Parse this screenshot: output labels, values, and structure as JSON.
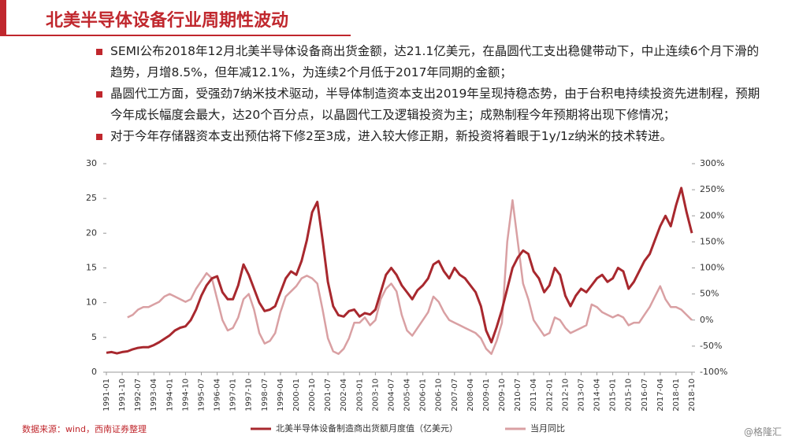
{
  "header": {
    "title": "北美半导体设备行业周期性波动"
  },
  "bullets": [
    "SEMI公布2018年12月北美半导体设备商出货金额，达21.1亿美元，在晶圆代工支出稳健带动下，中止连续6个月下滑的趋势，月增8.5%，但年减12.1%，为连续2个月低于2017年同期的金额；",
    "晶圆代工方面，受强劲7纳米技术驱动，半导体制造资本支出2019年呈现持稳态势，由于台积电持续投资先进制程，预期今年成长幅度会最大，达20个百分点，以晶圆代工及逻辑投资为主；成熟制程今年预期将出现下修情况；",
    "对于今年存储器资本支出预估将下修2至3成，进入较大修正期，新投资将着眼于1y/1z纳米的技术转进。"
  ],
  "source": "数据来源：wind，西南证券整理",
  "watermark": "@格隆汇",
  "chart_data": {
    "type": "line",
    "categories": [
      "1991-01",
      null,
      null,
      "1991-10",
      null,
      null,
      "1992-07",
      null,
      null,
      "1993-04",
      null,
      null,
      "1994-01",
      null,
      null,
      "1994-10",
      null,
      null,
      "1995-07",
      null,
      null,
      "1996-04",
      null,
      null,
      "1997-01",
      null,
      null,
      "1997-10",
      null,
      null,
      "1998-07",
      null,
      null,
      "1999-04",
      null,
      null,
      "2000-01",
      null,
      null,
      "2000-10",
      null,
      null,
      "2001-07",
      null,
      null,
      "2002-04",
      null,
      null,
      "2003-01",
      null,
      null,
      "2003-10",
      null,
      null,
      "2004-07",
      null,
      null,
      "2005-04",
      null,
      null,
      "2006-01",
      null,
      null,
      "2006-10",
      null,
      null,
      "2007-07",
      null,
      null,
      "2008-04",
      null,
      null,
      "2009-01",
      null,
      null,
      "2009-10",
      null,
      null,
      "2010-07",
      null,
      null,
      "2011-04",
      null,
      null,
      "2012-01",
      null,
      null,
      "2012-10",
      null,
      null,
      "2013-07",
      null,
      null,
      "2014-04",
      null,
      null,
      "2015-01",
      null,
      null,
      "2015-10",
      null,
      null,
      "2016-07",
      null,
      null,
      "2017-04",
      null,
      null,
      "2018-01",
      null,
      null,
      "2018-10"
    ],
    "series": [
      {
        "name": "北美半导体设备制造商出货额月度值（亿美元）",
        "color": "#a8282e",
        "axis": "y",
        "values": [
          2.8,
          2.9,
          2.7,
          2.9,
          3.0,
          3.3,
          3.5,
          3.6,
          3.6,
          3.9,
          4.3,
          4.8,
          5.3,
          6.0,
          6.4,
          6.6,
          7.5,
          9.0,
          11.0,
          12.5,
          13.5,
          13.8,
          11.5,
          10.5,
          10.5,
          12.5,
          15.5,
          14.0,
          12.0,
          10.0,
          8.8,
          9.0,
          9.5,
          11.5,
          13.5,
          14.5,
          14.0,
          16.0,
          19.0,
          23.0,
          24.5,
          19.0,
          13.0,
          9.5,
          8.2,
          8.0,
          8.8,
          9.0,
          8.0,
          8.5,
          8.3,
          9.0,
          11.5,
          14.0,
          15.0,
          14.0,
          12.5,
          11.5,
          10.5,
          11.8,
          12.5,
          13.5,
          15.5,
          16.0,
          14.5,
          13.5,
          15.0,
          14.0,
          13.5,
          12.5,
          11.5,
          9.5,
          6.0,
          4.3,
          6.5,
          9.0,
          12.0,
          15.0,
          16.5,
          17.5,
          17.0,
          14.5,
          13.5,
          11.5,
          12.5,
          15.0,
          14.0,
          11.0,
          9.5,
          11.0,
          12.0,
          11.5,
          12.5,
          13.5,
          14.0,
          13.0,
          13.5,
          15.0,
          14.5,
          12.0,
          13.0,
          14.5,
          16.0,
          17.0,
          19.0,
          21.0,
          22.5,
          21.0,
          24.0,
          26.5,
          23.0,
          20.0
        ]
      },
      {
        "name": "当月同比",
        "color": "#d9a0a3",
        "axis": "y2",
        "values": [
          null,
          null,
          null,
          null,
          5,
          10,
          20,
          25,
          25,
          30,
          35,
          45,
          50,
          45,
          40,
          35,
          40,
          60,
          75,
          90,
          80,
          40,
          0,
          -20,
          -15,
          5,
          40,
          50,
          20,
          -25,
          -45,
          -40,
          -25,
          15,
          45,
          55,
          65,
          80,
          85,
          80,
          70,
          20,
          -35,
          -60,
          -65,
          -55,
          -35,
          -5,
          -5,
          5,
          -10,
          0,
          40,
          60,
          70,
          55,
          10,
          -20,
          -30,
          -15,
          0,
          15,
          45,
          35,
          15,
          0,
          -5,
          -10,
          -15,
          -20,
          -25,
          -35,
          -55,
          -65,
          -40,
          -5,
          150,
          230,
          150,
          70,
          40,
          0,
          -15,
          -30,
          -25,
          5,
          0,
          -15,
          -25,
          -20,
          -15,
          -10,
          30,
          25,
          15,
          10,
          5,
          10,
          5,
          -10,
          -5,
          -5,
          10,
          25,
          45,
          65,
          40,
          25,
          25,
          20,
          10,
          0
        ]
      }
    ],
    "ylim": [
      0,
      30
    ],
    "yticks": [
      0,
      5,
      10,
      15,
      20,
      25,
      30
    ],
    "y2lim": [
      -100,
      300
    ],
    "y2ticks": [
      {
        "value": -100,
        "label": "-100%"
      },
      {
        "value": -50,
        "label": "-50%"
      },
      {
        "value": 0,
        "label": "0%"
      },
      {
        "value": 50,
        "label": "50%"
      },
      {
        "value": 100,
        "label": "100%"
      },
      {
        "value": 150,
        "label": "150%"
      },
      {
        "value": 200,
        "label": "200%"
      },
      {
        "value": 250,
        "label": "250%"
      },
      {
        "value": 300,
        "label": "300%"
      }
    ],
    "legend": "bottom"
  }
}
